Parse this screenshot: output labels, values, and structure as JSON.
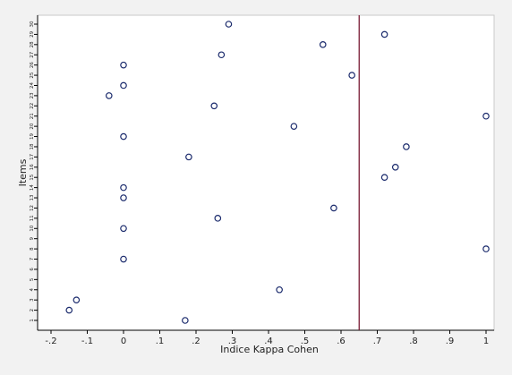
{
  "chart_data": {
    "type": "scatter",
    "title": "",
    "xlabel": "Indice Kappa Cohen",
    "ylabel": "Items",
    "xlim": [
      -0.2,
      1.0
    ],
    "ylim": [
      0.5,
      30.5
    ],
    "x_ticks": [
      -0.2,
      -0.1,
      0,
      0.1,
      0.2,
      0.3,
      0.4,
      0.5,
      0.6,
      0.7,
      0.8,
      0.9,
      1
    ],
    "x_tick_labels": [
      "-.2",
      "-.1",
      "0",
      ".1",
      ".2",
      ".3",
      ".4",
      ".5",
      ".6",
      ".7",
      ".8",
      ".9",
      "1"
    ],
    "y_ticks": [
      1,
      2,
      3,
      4,
      5,
      6,
      7,
      8,
      9,
      10,
      11,
      12,
      13,
      14,
      15,
      16,
      17,
      18,
      19,
      20,
      21,
      22,
      23,
      24,
      25,
      26,
      27,
      28,
      29,
      30
    ],
    "y_tick_labels": [
      "1",
      "2",
      "3",
      "4",
      "5",
      "6",
      "7",
      "8",
      "9",
      "10",
      "11",
      "12",
      "13",
      "14",
      "15",
      "16",
      "17",
      "18",
      "19",
      "20",
      "21",
      "22",
      "23",
      "24",
      "25",
      "26",
      "27",
      "28",
      "29",
      "30"
    ],
    "reference_line": {
      "x": 0.65,
      "color": "#7a1c35"
    },
    "marker": {
      "shape": "hollow-circle",
      "color": "#1a2a6c"
    },
    "grid": false,
    "legend": "none",
    "points": [
      {
        "x": 0.17,
        "y": 1
      },
      {
        "x": -0.15,
        "y": 2
      },
      {
        "x": -0.13,
        "y": 3
      },
      {
        "x": 0.43,
        "y": 4
      },
      {
        "x": 0.0,
        "y": 7
      },
      {
        "x": 1.0,
        "y": 8
      },
      {
        "x": 0.0,
        "y": 10
      },
      {
        "x": 0.26,
        "y": 11
      },
      {
        "x": 0.58,
        "y": 12
      },
      {
        "x": 0.0,
        "y": 13
      },
      {
        "x": 0.0,
        "y": 14
      },
      {
        "x": 0.72,
        "y": 15
      },
      {
        "x": 0.75,
        "y": 16
      },
      {
        "x": 0.18,
        "y": 17
      },
      {
        "x": 0.78,
        "y": 18
      },
      {
        "x": 0.0,
        "y": 19
      },
      {
        "x": 0.47,
        "y": 20
      },
      {
        "x": 1.0,
        "y": 21
      },
      {
        "x": 0.25,
        "y": 22
      },
      {
        "x": -0.04,
        "y": 23
      },
      {
        "x": 0.0,
        "y": 24
      },
      {
        "x": 0.63,
        "y": 25
      },
      {
        "x": 0.0,
        "y": 26
      },
      {
        "x": 0.27,
        "y": 27
      },
      {
        "x": 0.55,
        "y": 28
      },
      {
        "x": 0.72,
        "y": 29
      },
      {
        "x": 0.29,
        "y": 30
      }
    ]
  }
}
